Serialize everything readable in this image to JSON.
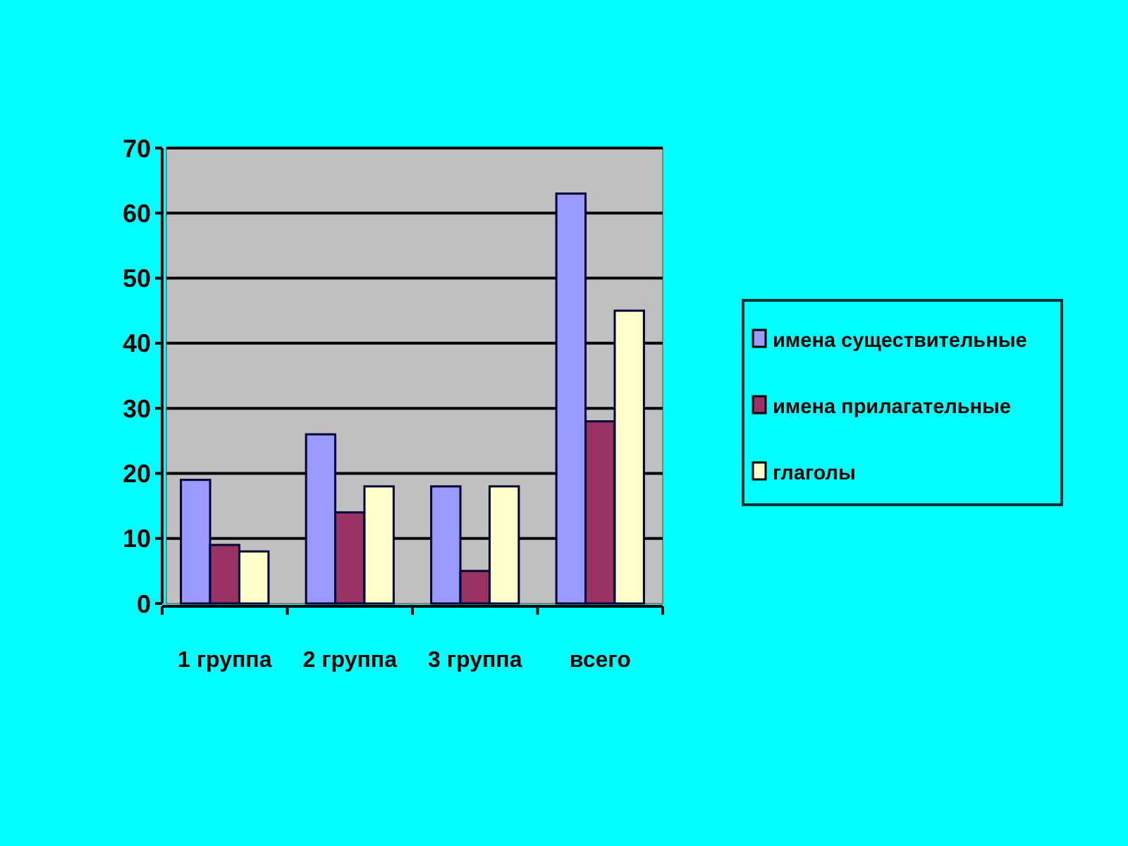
{
  "chart_data": {
    "type": "bar",
    "categories": [
      "1 группа",
      "2 группа",
      "3 группа",
      "всего"
    ],
    "series": [
      {
        "name": "имена существительные",
        "color": "#9999ff",
        "values": [
          19,
          26,
          18,
          63
        ]
      },
      {
        "name": "имена прилагательные",
        "color": "#993366",
        "values": [
          9,
          14,
          5,
          28
        ]
      },
      {
        "name": "глаголы",
        "color": "#ffffcc",
        "values": [
          8,
          18,
          18,
          45
        ]
      }
    ],
    "ylim": [
      0,
      70
    ],
    "yticks": [
      0,
      10,
      20,
      30,
      40,
      50,
      60,
      70
    ],
    "grid": "y",
    "legend": "right"
  }
}
